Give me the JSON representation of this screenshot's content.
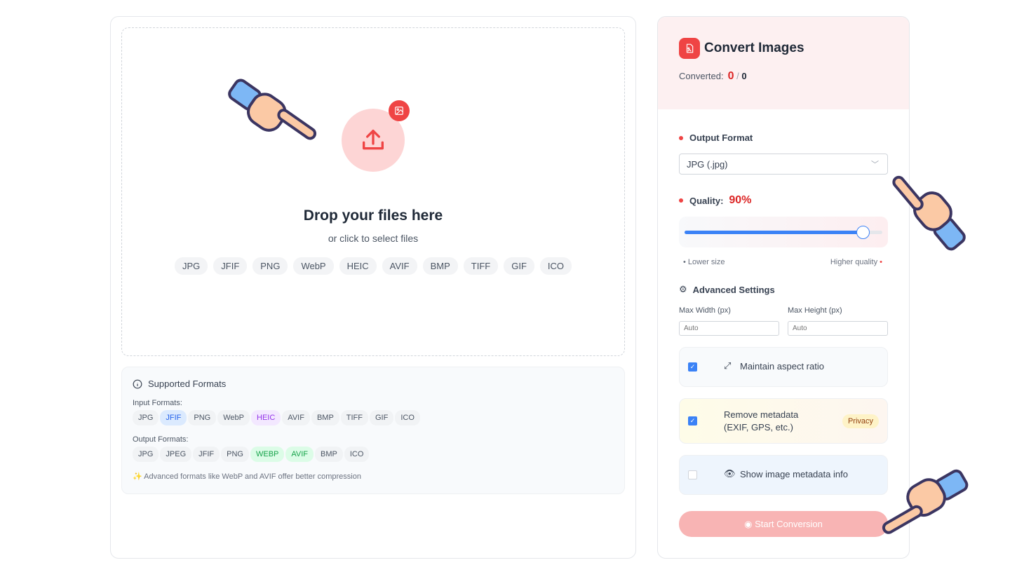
{
  "dropzone": {
    "title": "Drop your files here",
    "subtitle": "or click to select files",
    "chips": [
      "JPG",
      "JFIF",
      "PNG",
      "WebP",
      "HEIC",
      "AVIF",
      "BMP",
      "TIFF",
      "GIF",
      "ICO"
    ]
  },
  "supported": {
    "title": "Supported Formats",
    "input_label": "Input Formats:",
    "input": [
      "JPG",
      "JFIF",
      "PNG",
      "WebP",
      "HEIC",
      "AVIF",
      "BMP",
      "TIFF",
      "GIF",
      "ICO"
    ],
    "output_label": "Output Formats:",
    "output": [
      "JPG",
      "JPEG",
      "JFIF",
      "PNG",
      "WEBP",
      "AVIF",
      "BMP",
      "ICO"
    ],
    "note": "Advanced formats like WebP and AVIF offer better compression"
  },
  "panel": {
    "title": "Convert Images",
    "converted_label": "Converted:",
    "converted": "0",
    "total": "0",
    "sep": "/",
    "output_format_label": "Output Format",
    "output_format_value": "JPG (.jpg)",
    "quality_label": "Quality:",
    "quality_value": "90%",
    "quality": 90,
    "low_hint": "• Lower size",
    "high_hint": "Higher quality",
    "advanced_label": "Advanced Settings",
    "max_width_label": "Max Width (px)",
    "max_height_label": "Max Height (px)",
    "max_width_placeholder": "Auto",
    "max_height_placeholder": "Auto",
    "maintain_aspect": "Maintain aspect ratio",
    "maintain_checked": true,
    "remove_meta_1": "Remove metadata",
    "remove_meta_2": "(EXIF, GPS, etc.)",
    "remove_checked": true,
    "privacy_badge": "Privacy",
    "show_meta": "Show image metadata info",
    "show_checked": false,
    "start_label": "Start Conversion"
  },
  "colors": {
    "accent": "#ef4444",
    "blue": "#3b82f6"
  }
}
